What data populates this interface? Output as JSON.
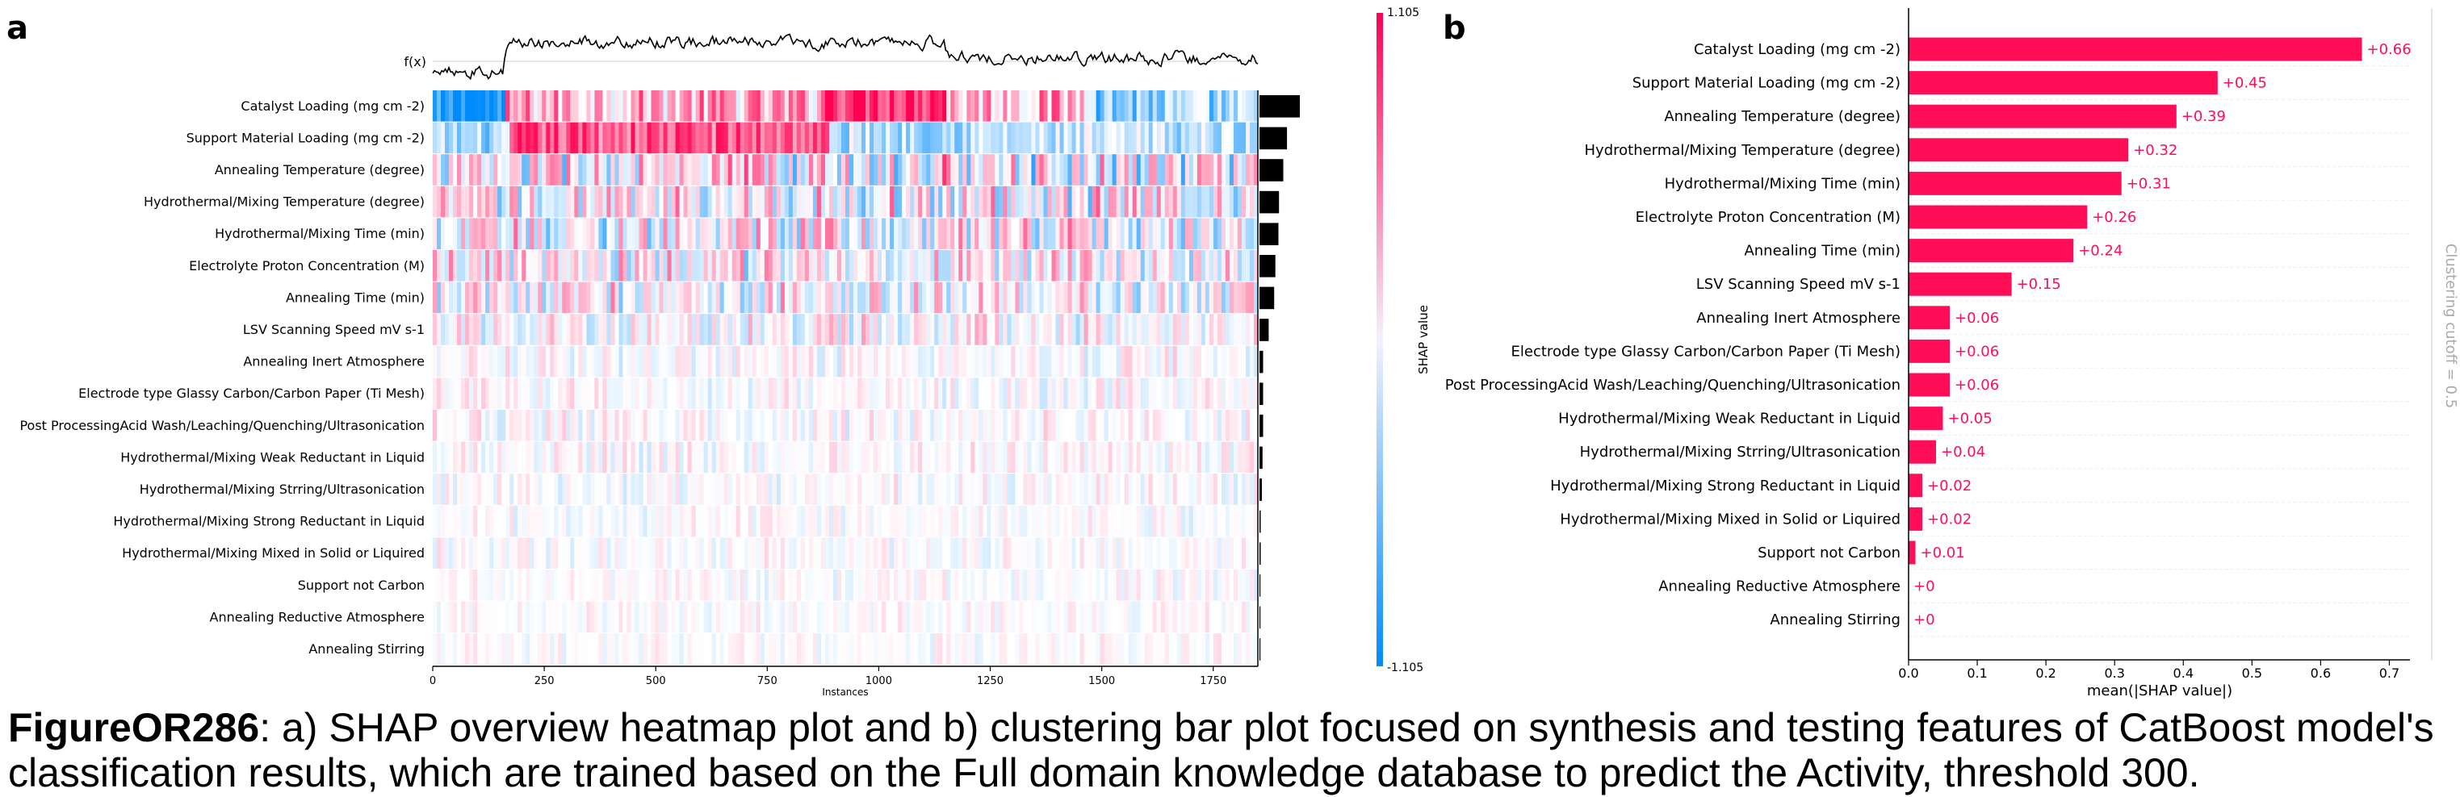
{
  "panels": {
    "a_label": "a",
    "b_label": "b"
  },
  "chart_data": [
    {
      "type": "heatmap",
      "panel": "a",
      "fx_label": "f(x)",
      "xlabel": "Instances",
      "xlim": [
        0,
        1850
      ],
      "xticks": [
        0,
        250,
        500,
        750,
        1000,
        1250,
        1500,
        1750
      ],
      "colorbar": {
        "label": "SHAP value",
        "max": 1.105,
        "min": -1.105,
        "max_label": "1.105",
        "min_label": "-1.105",
        "colors": {
          "high": "#ff0052",
          "low": "#008bfa",
          "mid": "#ffffff"
        }
      },
      "features": [
        "Catalyst Loading (mg cm -2)",
        "Support Material Loading (mg cm -2)",
        "Annealing Temperature (degree)",
        "Hydrothermal/Mixing Temperature (degree)",
        "Hydrothermal/Mixing Time (min)",
        "Electrolyte Proton Concentration (M)",
        "Annealing Time (min)",
        "LSV Scanning Speed mV s-1",
        "Annealing Inert Atmosphere",
        "Electrode type Glassy Carbon/Carbon Paper (Ti Mesh)",
        "Post ProcessingAcid Wash/Leaching/Quenching/Ultrasonication",
        "Hydrothermal/Mixing Weak Reductant in Liquid",
        "Hydrothermal/Mixing Strring/Ultrasonication",
        "Hydrothermal/Mixing Strong Reductant in Liquid",
        "Hydrothermal/Mixing Mixed in Solid or Liquired",
        "Support not Carbon",
        "Annealing Reductive Atmosphere",
        "Annealing Stirring"
      ],
      "feature_importance": [
        0.66,
        0.45,
        0.39,
        0.32,
        0.31,
        0.26,
        0.24,
        0.15,
        0.06,
        0.06,
        0.06,
        0.05,
        0.04,
        0.02,
        0.02,
        0.01,
        0.0,
        0.0
      ]
    },
    {
      "type": "bar",
      "orientation": "horizontal",
      "panel": "b",
      "categories": [
        "Catalyst Loading (mg cm -2)",
        "Support Material Loading (mg cm -2)",
        "Annealing Temperature (degree)",
        "Hydrothermal/Mixing Temperature (degree)",
        "Hydrothermal/Mixing Time (min)",
        "Electrolyte Proton Concentration (M)",
        "Annealing Time (min)",
        "LSV Scanning Speed mV s-1",
        "Annealing Inert Atmosphere",
        "Electrode type Glassy Carbon/Carbon Paper (Ti Mesh)",
        "Post ProcessingAcid Wash/Leaching/Quenching/Ultrasonication",
        "Hydrothermal/Mixing Weak Reductant in Liquid",
        "Hydrothermal/Mixing Strring/Ultrasonication",
        "Hydrothermal/Mixing Strong Reductant in Liquid",
        "Hydrothermal/Mixing Mixed in Solid or Liquired",
        "Support not Carbon",
        "Annealing Reductive Atmosphere",
        "Annealing Stirring"
      ],
      "values": [
        0.66,
        0.45,
        0.39,
        0.32,
        0.31,
        0.26,
        0.24,
        0.15,
        0.06,
        0.06,
        0.06,
        0.05,
        0.04,
        0.02,
        0.02,
        0.01,
        0,
        0
      ],
      "value_labels": [
        "+0.66",
        "+0.45",
        "+0.39",
        "+0.32",
        "+0.31",
        "+0.26",
        "+0.24",
        "+0.15",
        "+0.06",
        "+0.06",
        "+0.06",
        "+0.05",
        "+0.04",
        "+0.02",
        "+0.02",
        "+0.01",
        "+0",
        "+0"
      ],
      "xlabel": "mean(|SHAP value|)",
      "xlim": [
        0,
        0.73
      ],
      "xticks": [
        0.0,
        0.1,
        0.2,
        0.3,
        0.4,
        0.5,
        0.6,
        0.7
      ],
      "xtick_labels": [
        "0.0",
        "0.1",
        "0.2",
        "0.3",
        "0.4",
        "0.5",
        "0.6",
        "0.7"
      ],
      "cutoff_label": "Clustering cutoff = 0.5",
      "bar_color": "#ff0d57"
    }
  ],
  "caption": {
    "bold": "FigureOR286",
    "text": ": a) SHAP overview heatmap plot and b) clustering bar plot focused on synthesis and testing features of CatBoost model's classification results, which are trained based on the Full domain knowledge database to predict the Activity, threshold 300."
  }
}
